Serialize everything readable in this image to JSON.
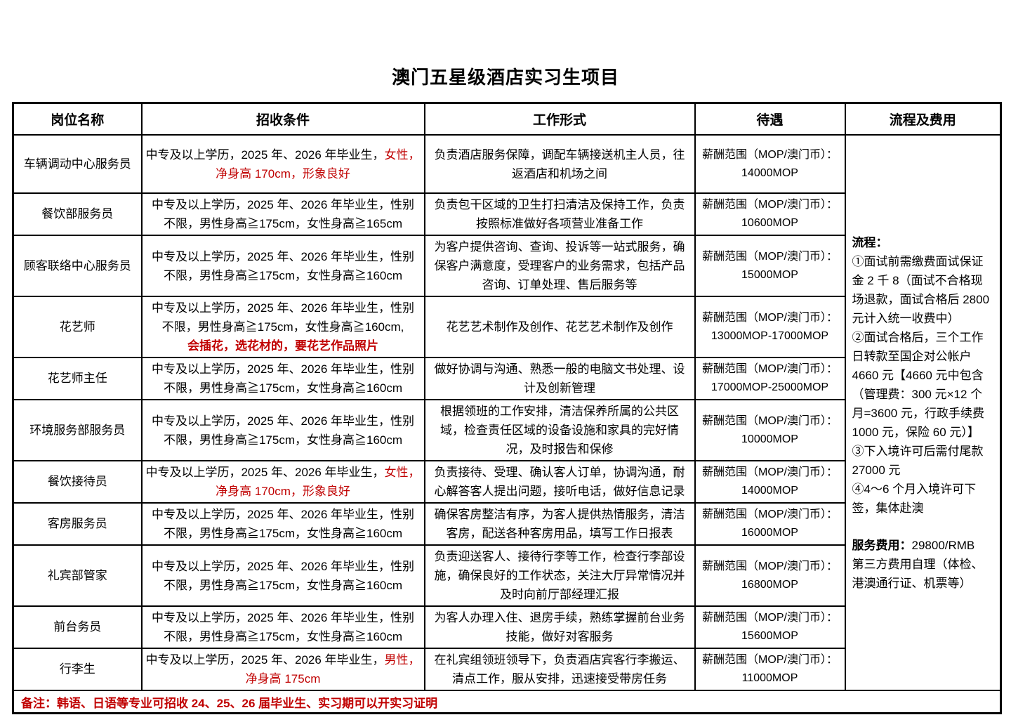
{
  "page": {
    "title": "澳门五星级酒店实习生项目"
  },
  "colors": {
    "red": "#c00000",
    "black": "#000000"
  },
  "table": {
    "headers": [
      "岗位名称",
      "招收条件",
      "工作形式",
      "待遇",
      "流程及费用"
    ],
    "salary_prefix": "薪酬范围（MOP/澳门币）：",
    "note": "备注：韩语、日语等专业可招收 24、25、26 届毕业生、实习期可以开实习证明",
    "rows": [
      {
        "position": "车辆调动中心服务员",
        "condition_lines": [
          [
            {
              "text": "中专及以上学历，2025 年、2026 年毕业生，",
              "red": false
            },
            {
              "text": "女性，",
              "red": true
            }
          ],
          [
            {
              "text": "净身高 170cm，形象良好",
              "red": true
            }
          ]
        ],
        "work": "负责酒店服务保障，调配车辆接送机主人员，往返酒店和机场之间",
        "salary": "14000MOP"
      },
      {
        "position": "餐饮部服务员",
        "condition_lines": [
          [
            {
              "text": "中专及以上学历，2025 年、2026 年毕业生，性别",
              "red": false
            }
          ],
          [
            {
              "text": "不限，男性身高≧175cm，女性身高≧165cm",
              "red": false
            }
          ]
        ],
        "work": "负责包干区域的卫生打扫清洁及保持工作，负责按照标准做好各项营业准备工作",
        "salary": "10600MOP"
      },
      {
        "position": "顾客联络中心服务员",
        "condition_lines": [
          [
            {
              "text": "中专及以上学历，2025 年、2026 年毕业生，性别",
              "red": false
            }
          ],
          [
            {
              "text": "不限，男性身高≧175cm，女性身高≧160cm",
              "red": false
            }
          ]
        ],
        "work": "为客户提供咨询、查询、投诉等一站式服务，确保客户满意度，受理客户的业务需求，包括产品咨询、订单处理、售后服务等",
        "salary": "15000MOP"
      },
      {
        "position": "花艺师",
        "condition_lines": [
          [
            {
              "text": "中专及以上学历，2025 年、2026 年毕业生，性别",
              "red": false
            }
          ],
          [
            {
              "text": "不限，男性身高≧175cm，女性身高≧160cm,",
              "red": false
            }
          ],
          [
            {
              "text": "会插花，选花材的，要花艺作品照片",
              "red": true,
              "bold": true
            }
          ]
        ],
        "work": "花艺艺术制作及创作、花艺艺术制作及创作",
        "salary": "13000MOP-17000MOP"
      },
      {
        "position": "花艺师主任",
        "condition_lines": [
          [
            {
              "text": "中专及以上学历，2025 年、2026 年毕业生，性别",
              "red": false
            }
          ],
          [
            {
              "text": "不限，男性身高≧175cm，女性身高≧160cm",
              "red": false
            }
          ]
        ],
        "work": "做好协调与沟通、熟悉一般的电脑文书处理、设计及创新管理",
        "salary": "17000MOP-25000MOP"
      },
      {
        "position": "环境服务部服务员",
        "condition_lines": [
          [
            {
              "text": "中专及以上学历，2025 年、2026 年毕业生，性别",
              "red": false
            }
          ],
          [
            {
              "text": "不限，男性身高≧175cm，女性身高≧160cm",
              "red": false
            }
          ]
        ],
        "work": "根据领班的工作安排，清洁保养所属的公共区域，检查责任区域的设备设施和家具的完好情况，及时报告和保修",
        "salary": "10000MOP"
      },
      {
        "position": "餐饮接待员",
        "condition_lines": [
          [
            {
              "text": "中专及以上学历，2025 年、2026 年毕业生，",
              "red": false
            },
            {
              "text": "女性，",
              "red": true
            }
          ],
          [
            {
              "text": "净身高 170cm，形象良好",
              "red": true
            }
          ]
        ],
        "work": "负责接待、受理、确认客人订单，协调沟通，耐心解答客人提出问题，接听电话，做好信息记录",
        "salary": "14000MOP"
      },
      {
        "position": "客房服务员",
        "condition_lines": [
          [
            {
              "text": "中专及以上学历，2025 年、2026 年毕业生，性别",
              "red": false
            }
          ],
          [
            {
              "text": "不限，男性身高≧175cm，女性身高≧160cm",
              "red": false
            }
          ]
        ],
        "work": "确保客房整洁有序，为客人提供热情服务，清洁客房，配送各种客房用品，填写工作日报表",
        "salary": "16000MOP"
      },
      {
        "position": "礼宾部管家",
        "condition_lines": [
          [
            {
              "text": "中专及以上学历，2025 年、2026 年毕业生，性别",
              "red": false
            }
          ],
          [
            {
              "text": "不限，男性身高≧175cm，女性身高≧160cm",
              "red": false
            }
          ]
        ],
        "work": "负责迎送客人、接待行李等工作，检查行李部设施，确保良好的工作状态，关注大厅异常情况并及时向前厅部经理汇报",
        "salary": "16800MOP"
      },
      {
        "position": "前台务员",
        "condition_lines": [
          [
            {
              "text": "中专及以上学历，2025 年、2026 年毕业生，性别",
              "red": false
            }
          ],
          [
            {
              "text": "不限，男性身高≧175cm，女性身高≧160cm",
              "red": false
            }
          ]
        ],
        "work": "为客人办理入住、退房手续，熟练掌握前台业务技能，做好对客服务",
        "salary": "15600MOP"
      },
      {
        "position": "行李生",
        "condition_lines": [
          [
            {
              "text": "中专及以上学历，2025 年、2026 年毕业生，",
              "red": false
            },
            {
              "text": "男性，",
              "red": true
            }
          ],
          [
            {
              "text": "净身高 175cm",
              "red": true
            }
          ]
        ],
        "work": "在礼宾组领班领导下，负责酒店宾客行李搬运、清点工作，服从安排，迅速接受带房任务",
        "salary": "11000MOP"
      }
    ]
  },
  "process": {
    "heading": "流程：",
    "steps": [
      "①面试前需缴费面试保证金 2 千 8（面试不合格现场退款，面试合格后 2800 元计入统一收费中）",
      "②面试合格后，三个工作日转款至国企对公帐户 4660 元【4660 元中包含（管理费：300 元×12 个月=3600 元，行政手续费 1000 元，保险 60 元）】",
      "③下入境许可后需付尾款 27000 元",
      "④4～6 个月入境许可下签，集体赴澳"
    ],
    "fee_label": "服务费用：",
    "fee_value": "29800/RMB",
    "third_party": "第三方费用自理（体检、港澳通行证、机票等）"
  }
}
